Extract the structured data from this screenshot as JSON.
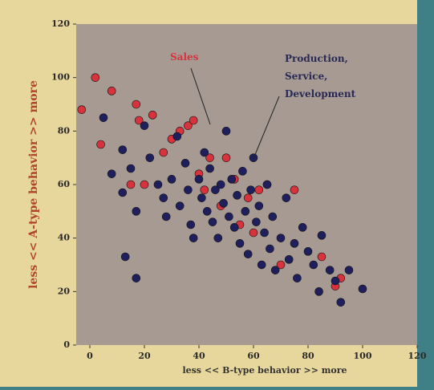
{
  "chart_data": {
    "type": "scatter",
    "xlabel": "less << B-type behavior >> more",
    "ylabel": "less << A-type behavior >> more",
    "xlim": [
      -5,
      120
    ],
    "ylim": [
      0,
      120
    ],
    "xticks": [
      0,
      20,
      40,
      60,
      80,
      100,
      120
    ],
    "yticks": [
      0,
      20,
      40,
      60,
      80,
      100,
      120
    ],
    "series": [
      {
        "name": "Production, Service, Development",
        "color": "#1f1f5e",
        "x": [
          5,
          8,
          12,
          12,
          13,
          15,
          17,
          17,
          20,
          22,
          25,
          27,
          28,
          30,
          32,
          33,
          35,
          36,
          37,
          38,
          40,
          41,
          42,
          43,
          44,
          45,
          46,
          47,
          48,
          49,
          50,
          51,
          52,
          53,
          54,
          55,
          56,
          57,
          58,
          59,
          60,
          61,
          62,
          63,
          64,
          65,
          66,
          67,
          68,
          70,
          72,
          73,
          75,
          76,
          78,
          80,
          82,
          84,
          85,
          88,
          90,
          92,
          95,
          100
        ],
        "values": [
          85,
          64,
          73,
          57,
          33,
          66,
          50,
          25,
          82,
          70,
          60,
          55,
          48,
          62,
          78,
          52,
          68,
          58,
          45,
          40,
          62,
          55,
          72,
          50,
          66,
          46,
          58,
          40,
          60,
          53,
          80,
          48,
          62,
          44,
          56,
          38,
          65,
          50,
          34,
          58,
          70,
          46,
          52,
          30,
          42,
          60,
          36,
          48,
          28,
          40,
          55,
          32,
          38,
          25,
          44,
          35,
          30,
          20,
          41,
          28,
          24,
          16,
          28,
          21
        ]
      },
      {
        "name": "Sales",
        "color": "#d8323c",
        "x": [
          -3,
          2,
          4,
          8,
          15,
          17,
          18,
          20,
          23,
          27,
          30,
          33,
          36,
          38,
          40,
          42,
          44,
          48,
          50,
          53,
          55,
          58,
          60,
          62,
          65,
          70,
          75,
          85,
          90,
          92
        ],
        "values": [
          88,
          100,
          75,
          95,
          60,
          90,
          84,
          60,
          86,
          72,
          77,
          80,
          82,
          84,
          64,
          58,
          70,
          52,
          70,
          62,
          45,
          55,
          42,
          58,
          60,
          30,
          58,
          33,
          22,
          25
        ]
      }
    ]
  }
}
